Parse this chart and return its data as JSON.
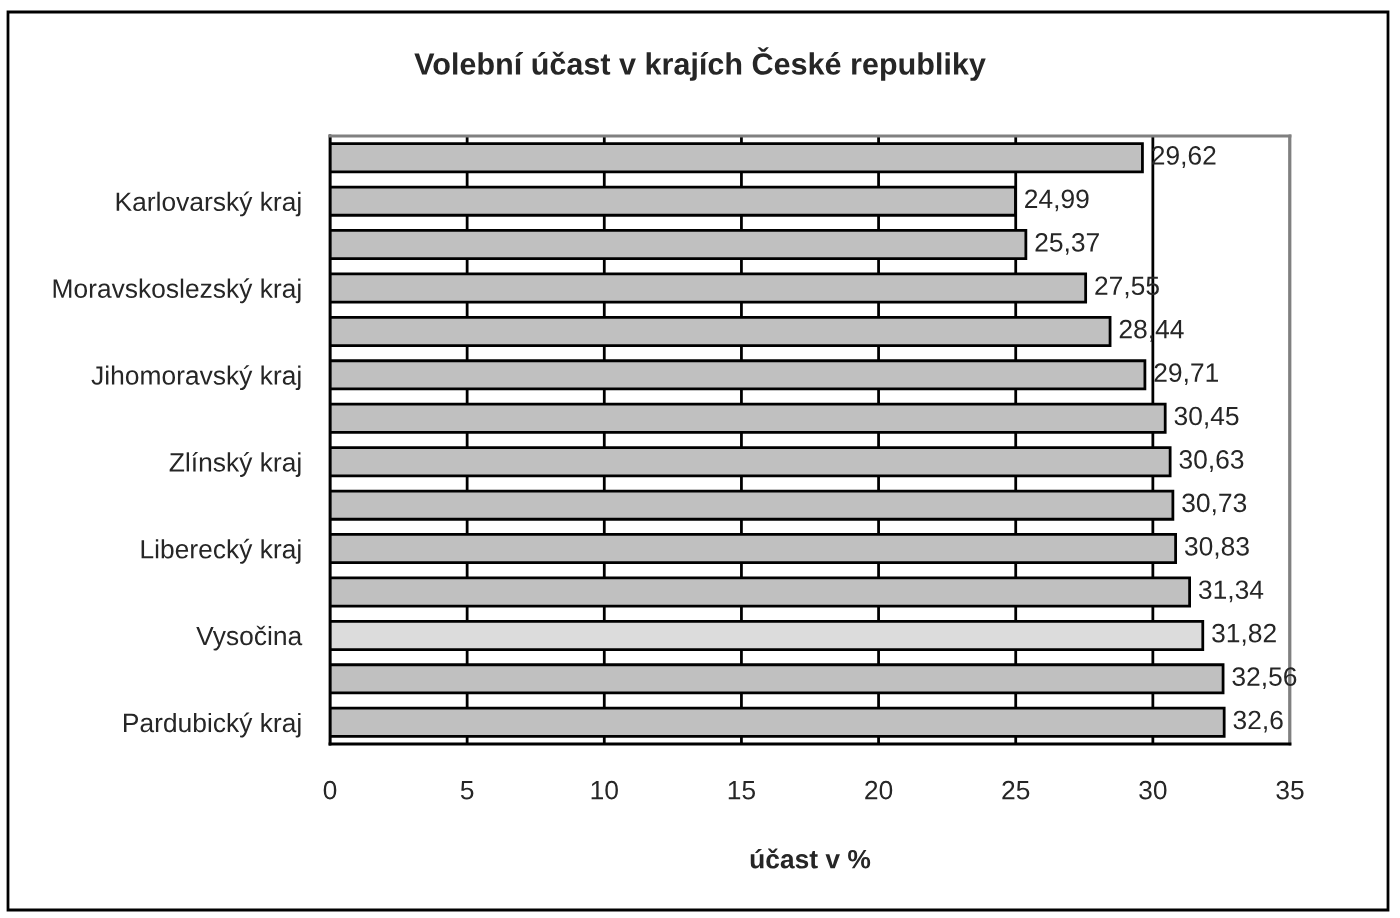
{
  "chart_data": {
    "type": "bar",
    "orientation": "horizontal",
    "title": "Volební účast v krajích České republiky",
    "xlabel": "účast v %",
    "categories": [
      null,
      "Karlovarský kraj",
      null,
      "Moravskoslezský kraj",
      null,
      "Jihomoravský kraj",
      null,
      "Zlínský kraj",
      null,
      "Liberecký kraj",
      null,
      "Vysočina",
      null,
      "Pardubický kraj"
    ],
    "values": [
      29.62,
      24.99,
      25.37,
      27.55,
      28.44,
      29.71,
      30.45,
      30.63,
      30.73,
      30.83,
      31.34,
      31.82,
      32.56,
      32.6
    ],
    "value_labels": [
      "29,62",
      "24,99",
      "25,37",
      "27,55",
      "28,44",
      "29,71",
      "30,45",
      "30,63",
      "30,73",
      "30,83",
      "31,34",
      "31,82",
      "32,56",
      "32,6"
    ],
    "colors": [
      "#c0c0c0",
      "#c0c0c0",
      "#c0c0c0",
      "#c0c0c0",
      "#c0c0c0",
      "#c0c0c0",
      "#c0c0c0",
      "#c0c0c0",
      "#c0c0c0",
      "#c0c0c0",
      "#c0c0c0",
      "#dcdcdc",
      "#c0c0c0",
      "#c0c0c0"
    ],
    "xlim": [
      0,
      35
    ],
    "xticks": [
      0,
      5,
      10,
      15,
      20,
      25,
      30,
      35
    ],
    "grid": "x",
    "legend": false
  }
}
